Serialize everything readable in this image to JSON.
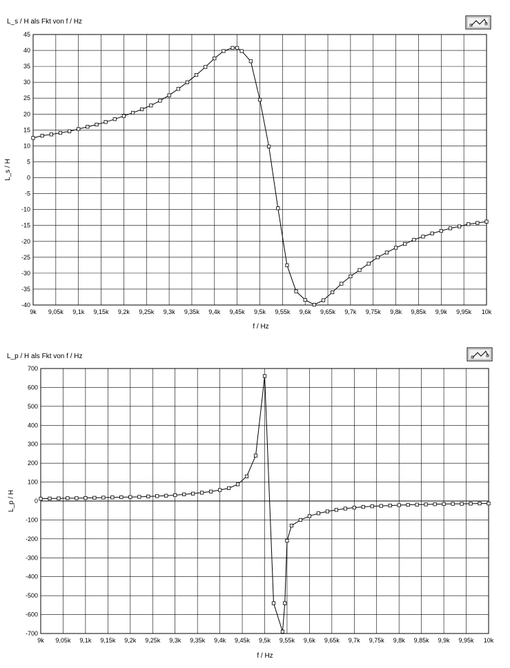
{
  "chart_data": [
    {
      "type": "line",
      "title": "L_s / H  als Fkt von  f / Hz",
      "xlabel": "f / Hz",
      "ylabel": "L_s / H",
      "xlim": [
        9000,
        10000
      ],
      "ylim": [
        -40,
        45
      ],
      "grid": true,
      "x_tick_labels": [
        "9k",
        "9,05k",
        "9,1k",
        "9,15k",
        "9,2k",
        "9,25k",
        "9,3k",
        "9,35k",
        "9,4k",
        "9,45k",
        "9,5k",
        "9,55k",
        "9,6k",
        "9,65k",
        "9,7k",
        "9,75k",
        "9,8k",
        "9,85k",
        "9,9k",
        "9,95k",
        "10k"
      ],
      "y_tick_labels": [
        "45",
        "40",
        "35",
        "30",
        "25",
        "20",
        "15",
        "10",
        "5",
        "0",
        "-5",
        "-10",
        "-15",
        "-20",
        "-25",
        "-30",
        "-35",
        "-40"
      ],
      "series": [
        {
          "x": [
            9000,
            9020,
            9040,
            9060,
            9080,
            9100,
            9120,
            9140,
            9160,
            9180,
            9200,
            9220,
            9240,
            9260,
            9280,
            9300,
            9320,
            9340,
            9360,
            9380,
            9400,
            9420,
            9440,
            9450,
            9460,
            9480,
            9500,
            9520,
            9540,
            9560,
            9580,
            9600,
            9620,
            9640,
            9660,
            9680,
            9700,
            9720,
            9740,
            9760,
            9780,
            9800,
            9820,
            9840,
            9860,
            9880,
            9900,
            9920,
            9940,
            9960,
            9980,
            10000
          ],
          "y": [
            12.5,
            13.2,
            13.6,
            14.1,
            14.6,
            15.3,
            16.0,
            16.7,
            17.5,
            18.4,
            19.4,
            20.4,
            21.5,
            22.7,
            24.2,
            25.9,
            27.9,
            30.0,
            32.3,
            34.8,
            37.5,
            39.8,
            40.8,
            40.8,
            39.8,
            36.6,
            24.5,
            9.8,
            -9.6,
            -27.5,
            -35.7,
            -38.4,
            -39.9,
            -38.5,
            -36.0,
            -33.3,
            -31.0,
            -29.0,
            -27.0,
            -25.0,
            -23.5,
            -22.0,
            -20.8,
            -19.5,
            -18.5,
            -17.5,
            -16.7,
            -15.9,
            -15.3,
            -14.6,
            -14.2,
            -13.8
          ]
        }
      ]
    },
    {
      "type": "line",
      "title": "L_p / H  als Fkt von  f / Hz",
      "xlabel": "f / Hz",
      "ylabel": "L_p / H",
      "xlim": [
        9000,
        10000
      ],
      "ylim": [
        -700,
        700
      ],
      "grid": true,
      "x_tick_labels": [
        "9k",
        "9,05k",
        "9,1k",
        "9,15k",
        "9,2k",
        "9,25k",
        "9,3k",
        "9,35k",
        "9,4k",
        "9,45k",
        "9,5k",
        "9,55k",
        "9,6k",
        "9,65k",
        "9,7k",
        "9,75k",
        "9,8k",
        "9,85k",
        "9,9k",
        "9,95k",
        "10k"
      ],
      "y_tick_labels": [
        "700",
        "600",
        "500",
        "400",
        "300",
        "200",
        "100",
        "0",
        "-100",
        "-200",
        "-300",
        "-400",
        "-500",
        "-600",
        "-700"
      ],
      "series": [
        {
          "x": [
            9000,
            9020,
            9040,
            9060,
            9080,
            9100,
            9120,
            9140,
            9160,
            9180,
            9200,
            9220,
            9240,
            9260,
            9280,
            9300,
            9320,
            9340,
            9360,
            9380,
            9400,
            9420,
            9440,
            9460,
            9480,
            9500,
            9520,
            9540,
            9545,
            9550,
            9560,
            9580,
            9600,
            9620,
            9640,
            9660,
            9680,
            9700,
            9720,
            9740,
            9760,
            9780,
            9800,
            9820,
            9840,
            9860,
            9880,
            9900,
            9920,
            9940,
            9960,
            9980,
            10000
          ],
          "y": [
            12,
            13,
            14,
            15,
            15,
            16,
            17,
            18,
            19,
            20,
            21,
            22,
            24,
            26,
            28,
            31,
            35,
            39,
            44,
            50,
            58,
            68,
            88,
            130,
            240,
            660,
            -540,
            -690,
            -540,
            -210,
            -130,
            -100,
            -80,
            -65,
            -55,
            -47,
            -40,
            -35,
            -31,
            -28,
            -26,
            -24,
            -22,
            -20,
            -19,
            -18,
            -17,
            -16,
            -15,
            -15,
            -14,
            -13,
            -13
          ],
          "y_source_note": ""
        }
      ]
    }
  ],
  "icons": [
    "graph-palette-icon",
    "graph-palette-icon"
  ]
}
